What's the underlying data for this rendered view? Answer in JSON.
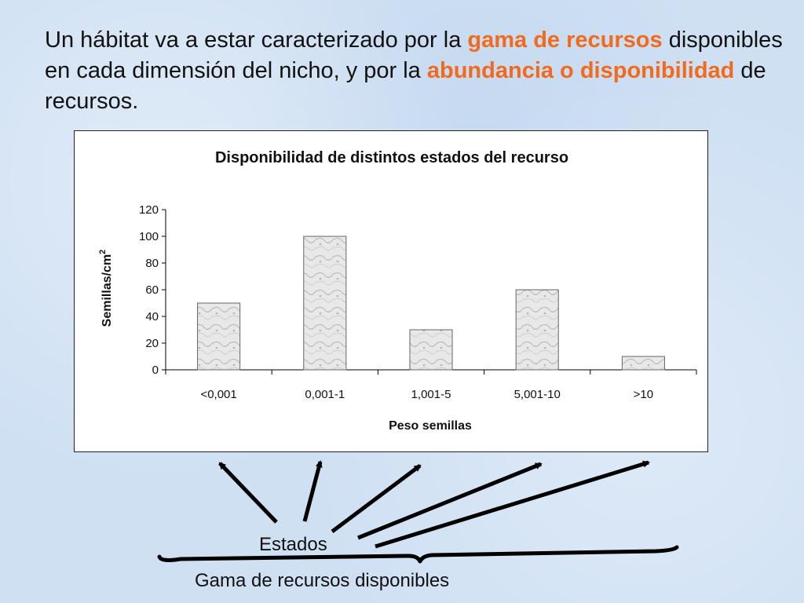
{
  "headline": {
    "p1": "Un hábitat va a estar caracterizado por la ",
    "h1": "gama de recursos",
    "p2": " disponibles en cada dimensión del nicho, y por la ",
    "h2": "abundancia o disponibilidad",
    "p3": " de recursos."
  },
  "chart_data": {
    "type": "bar",
    "title": "Disponibilidad de distintos estados del recurso",
    "xlabel": "Peso semillas",
    "ylabel": "Semillas/cm",
    "ylabel_sup": "2",
    "categories": [
      "<0,001",
      "0,001-1",
      "1,001-5",
      "5,001-10",
      ">10"
    ],
    "values": [
      50,
      100,
      30,
      60,
      10
    ],
    "ylim": [
      0,
      120
    ],
    "yticks": [
      0,
      20,
      40,
      60,
      80,
      100,
      120
    ],
    "grid": false,
    "legend": "none"
  },
  "annotations": {
    "estados": "Estados",
    "gama": "Gama de recursos disponibles"
  },
  "colors": {
    "highlight": "#f26a1d",
    "arrow": "#000000",
    "bar_fill": "#e6e6e6",
    "bar_stroke": "#666666"
  }
}
